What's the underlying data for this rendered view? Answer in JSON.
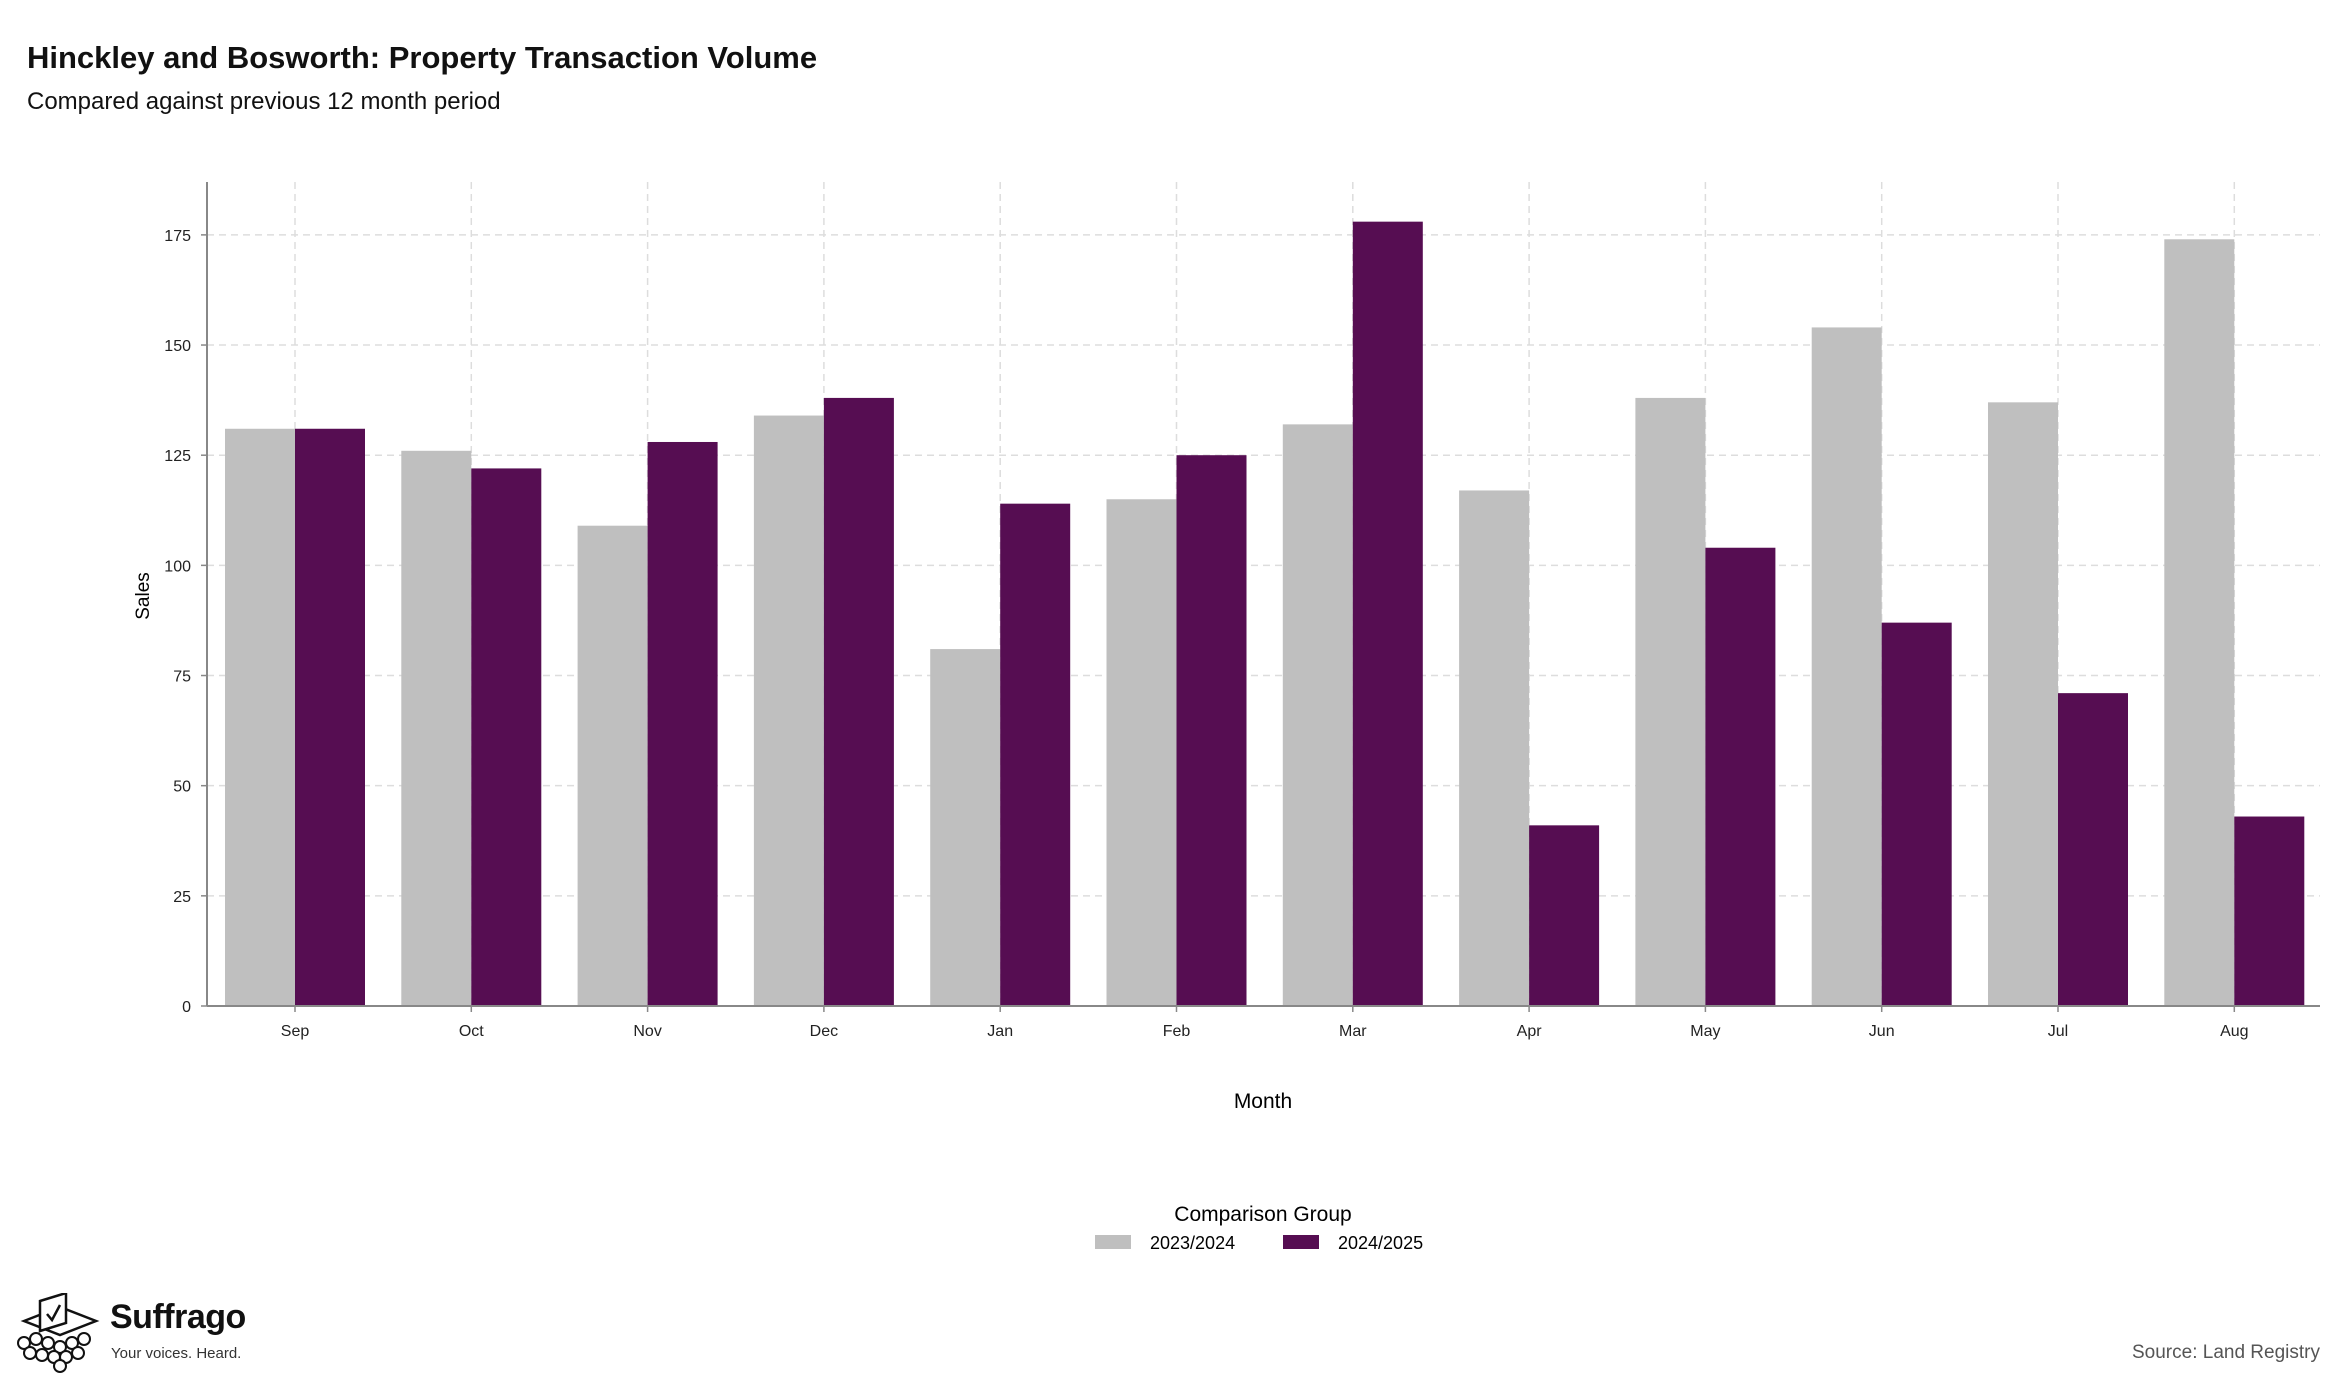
{
  "chart_data": {
    "type": "bar",
    "title": "Hinckley and Bosworth: Property Transaction Volume",
    "subtitle": "Compared against previous 12 month period",
    "xlabel": "Month",
    "ylabel": "Sales",
    "categories": [
      "Sep",
      "Oct",
      "Nov",
      "Dec",
      "Jan",
      "Feb",
      "Mar",
      "Apr",
      "May",
      "Jun",
      "Jul",
      "Aug"
    ],
    "series": [
      {
        "name": "2023/2024",
        "color": "#bfbfbf",
        "values": [
          131,
          126,
          109,
          134,
          81,
          115,
          132,
          117,
          138,
          154,
          137,
          174
        ]
      },
      {
        "name": "2024/2025",
        "color": "#560d52",
        "values": [
          131,
          122,
          128,
          138,
          114,
          125,
          178,
          41,
          104,
          87,
          71,
          43
        ]
      }
    ],
    "ylim": [
      0,
      187
    ],
    "yticks": [
      0,
      25,
      50,
      75,
      100,
      125,
      150,
      175
    ],
    "grid": true,
    "legend": {
      "title": "Comparison Group",
      "position": "bottom"
    }
  },
  "source": "Source: Land Registry",
  "brand": {
    "name": "Suffrago",
    "tagline": "Your voices. Heard."
  }
}
